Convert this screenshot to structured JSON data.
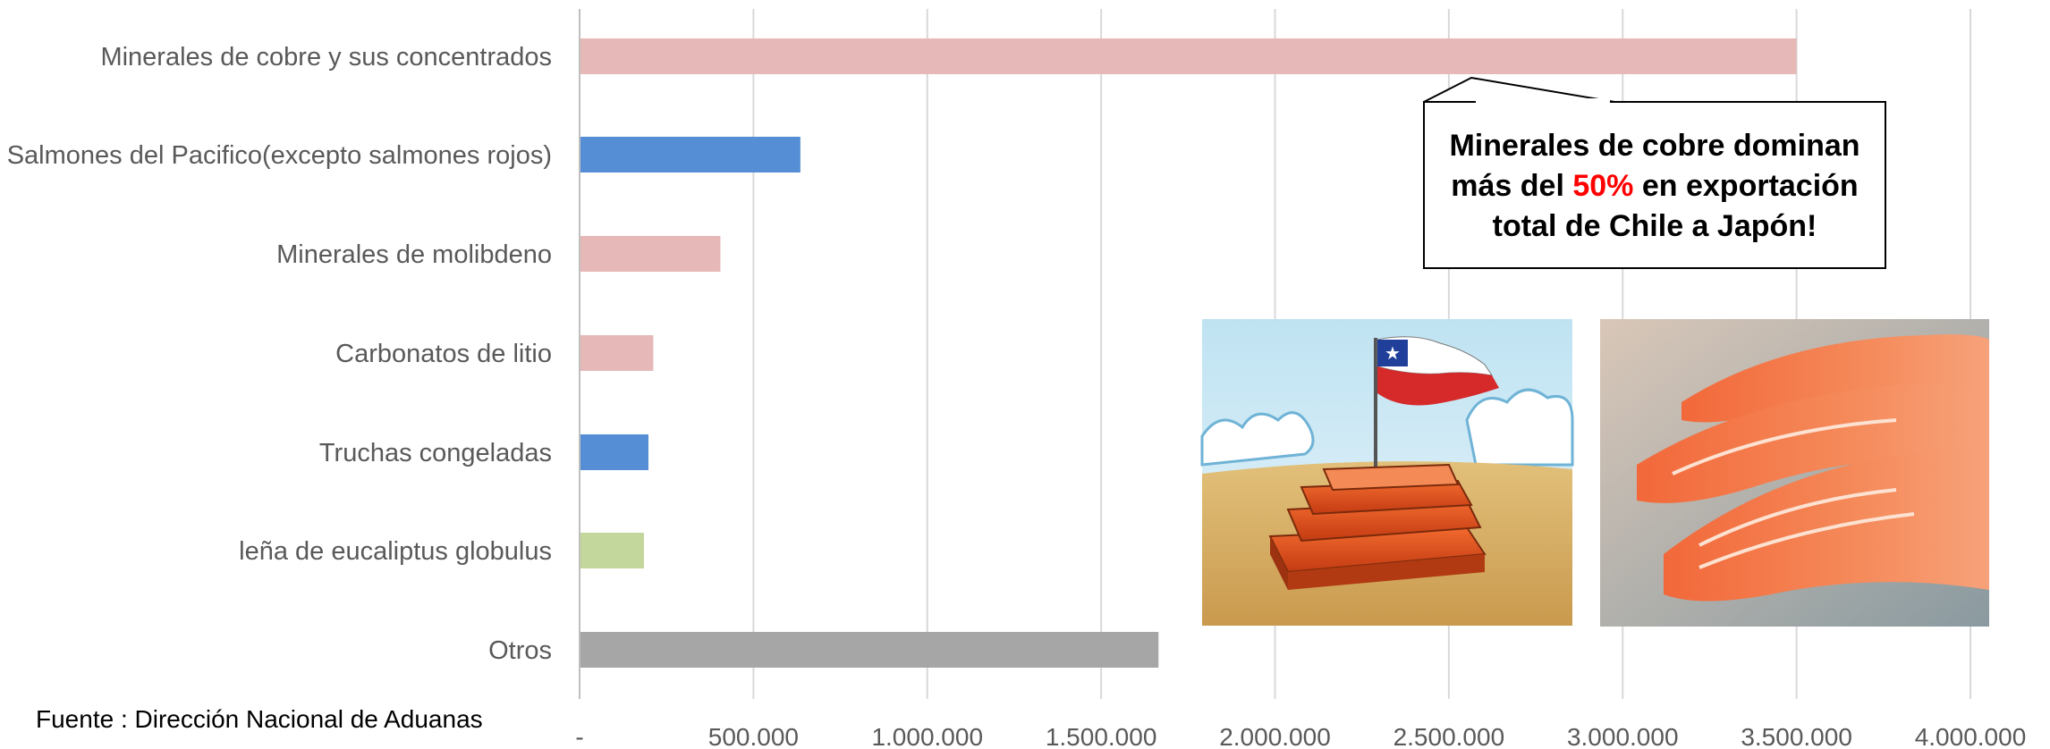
{
  "chart_data": {
    "type": "bar",
    "orientation": "horizontal",
    "categories": [
      "Minerales de cobre y sus concentrados",
      "Salmones del Pacifico(excepto salmones rojos)",
      "Minerales de molibdeno",
      "Carbonatos de litio",
      "Truchas congeladas",
      "leña de eucaliptus globulus",
      "Otros"
    ],
    "values": [
      3500000,
      635000,
      405000,
      212000,
      198000,
      185000,
      1665000
    ],
    "bar_colors": [
      "#e6b8b7",
      "#558ed5",
      "#e6b8b7",
      "#e6b8b7",
      "#558ed5",
      "#c3d69b",
      "#a6a6a6"
    ],
    "xlim": [
      0,
      4000000
    ],
    "x_ticks": [
      0,
      500000,
      1000000,
      1500000,
      2000000,
      2500000,
      3000000,
      3500000,
      4000000
    ],
    "x_tick_labels": [
      "-",
      "500.000",
      "1.000.000",
      "1.500.000",
      "2.000.000",
      "2.500.000",
      "3.000.000",
      "3.500.000",
      "4.000.000"
    ],
    "grid": "vertical",
    "title": "",
    "xlabel": "",
    "ylabel": ""
  },
  "source": "Fuente : Dirección Nacional de Aduanas",
  "callout": {
    "line1": "Minerales de cobre dominan",
    "line2_pre": "más del ",
    "line2_highlight": "50%",
    "line2_post": " en exportación",
    "line3": "total de Chile a Japón!",
    "highlight_color": "#ff0000"
  },
  "images": {
    "left": "chile-flag-copper-ingots-illustration",
    "right": "salmon-fillets-photo"
  },
  "colors": {
    "grid": "#d9d9d9",
    "axis": "#bfbfbf",
    "label": "#595959"
  }
}
